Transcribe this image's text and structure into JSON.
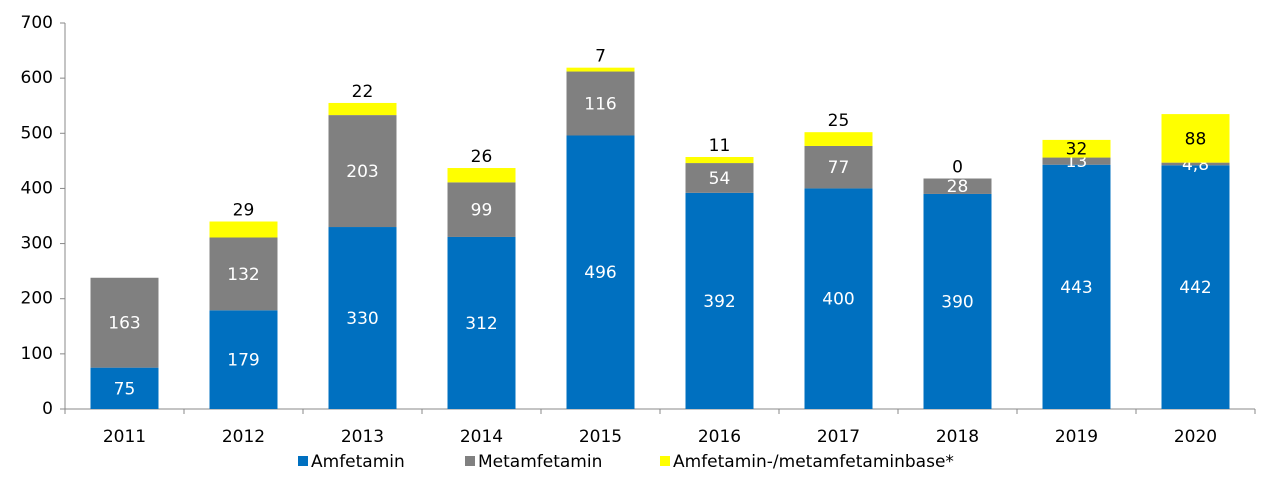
{
  "chart_data": {
    "type": "stacked_bar",
    "categories": [
      "2011",
      "2012",
      "2013",
      "2014",
      "2015",
      "2016",
      "2017",
      "2018",
      "2019",
      "2020"
    ],
    "series": [
      {
        "name": "Amfetamin",
        "color": "#0070c0",
        "values": [
          75,
          179,
          330,
          312,
          496,
          392,
          400,
          390,
          443,
          442
        ]
      },
      {
        "name": "Metamfetamin",
        "color": "#808080",
        "values": [
          163,
          132,
          203,
          99,
          116,
          54,
          77,
          28,
          13,
          4.8
        ],
        "value_labels": [
          "163",
          "132",
          "203",
          "99",
          "116",
          "54",
          "77",
          "28",
          "13",
          "4,8"
        ]
      },
      {
        "name": "Amfetamin-/metamfetaminbase*",
        "color": "#ffff00",
        "values": [
          null,
          29,
          22,
          26,
          7,
          11,
          25,
          0,
          32,
          88
        ]
      }
    ],
    "ylim": [
      0,
      700
    ],
    "yticks": [
      0,
      100,
      200,
      300,
      400,
      500,
      600,
      700
    ],
    "grid": false,
    "legend": "bottom"
  }
}
